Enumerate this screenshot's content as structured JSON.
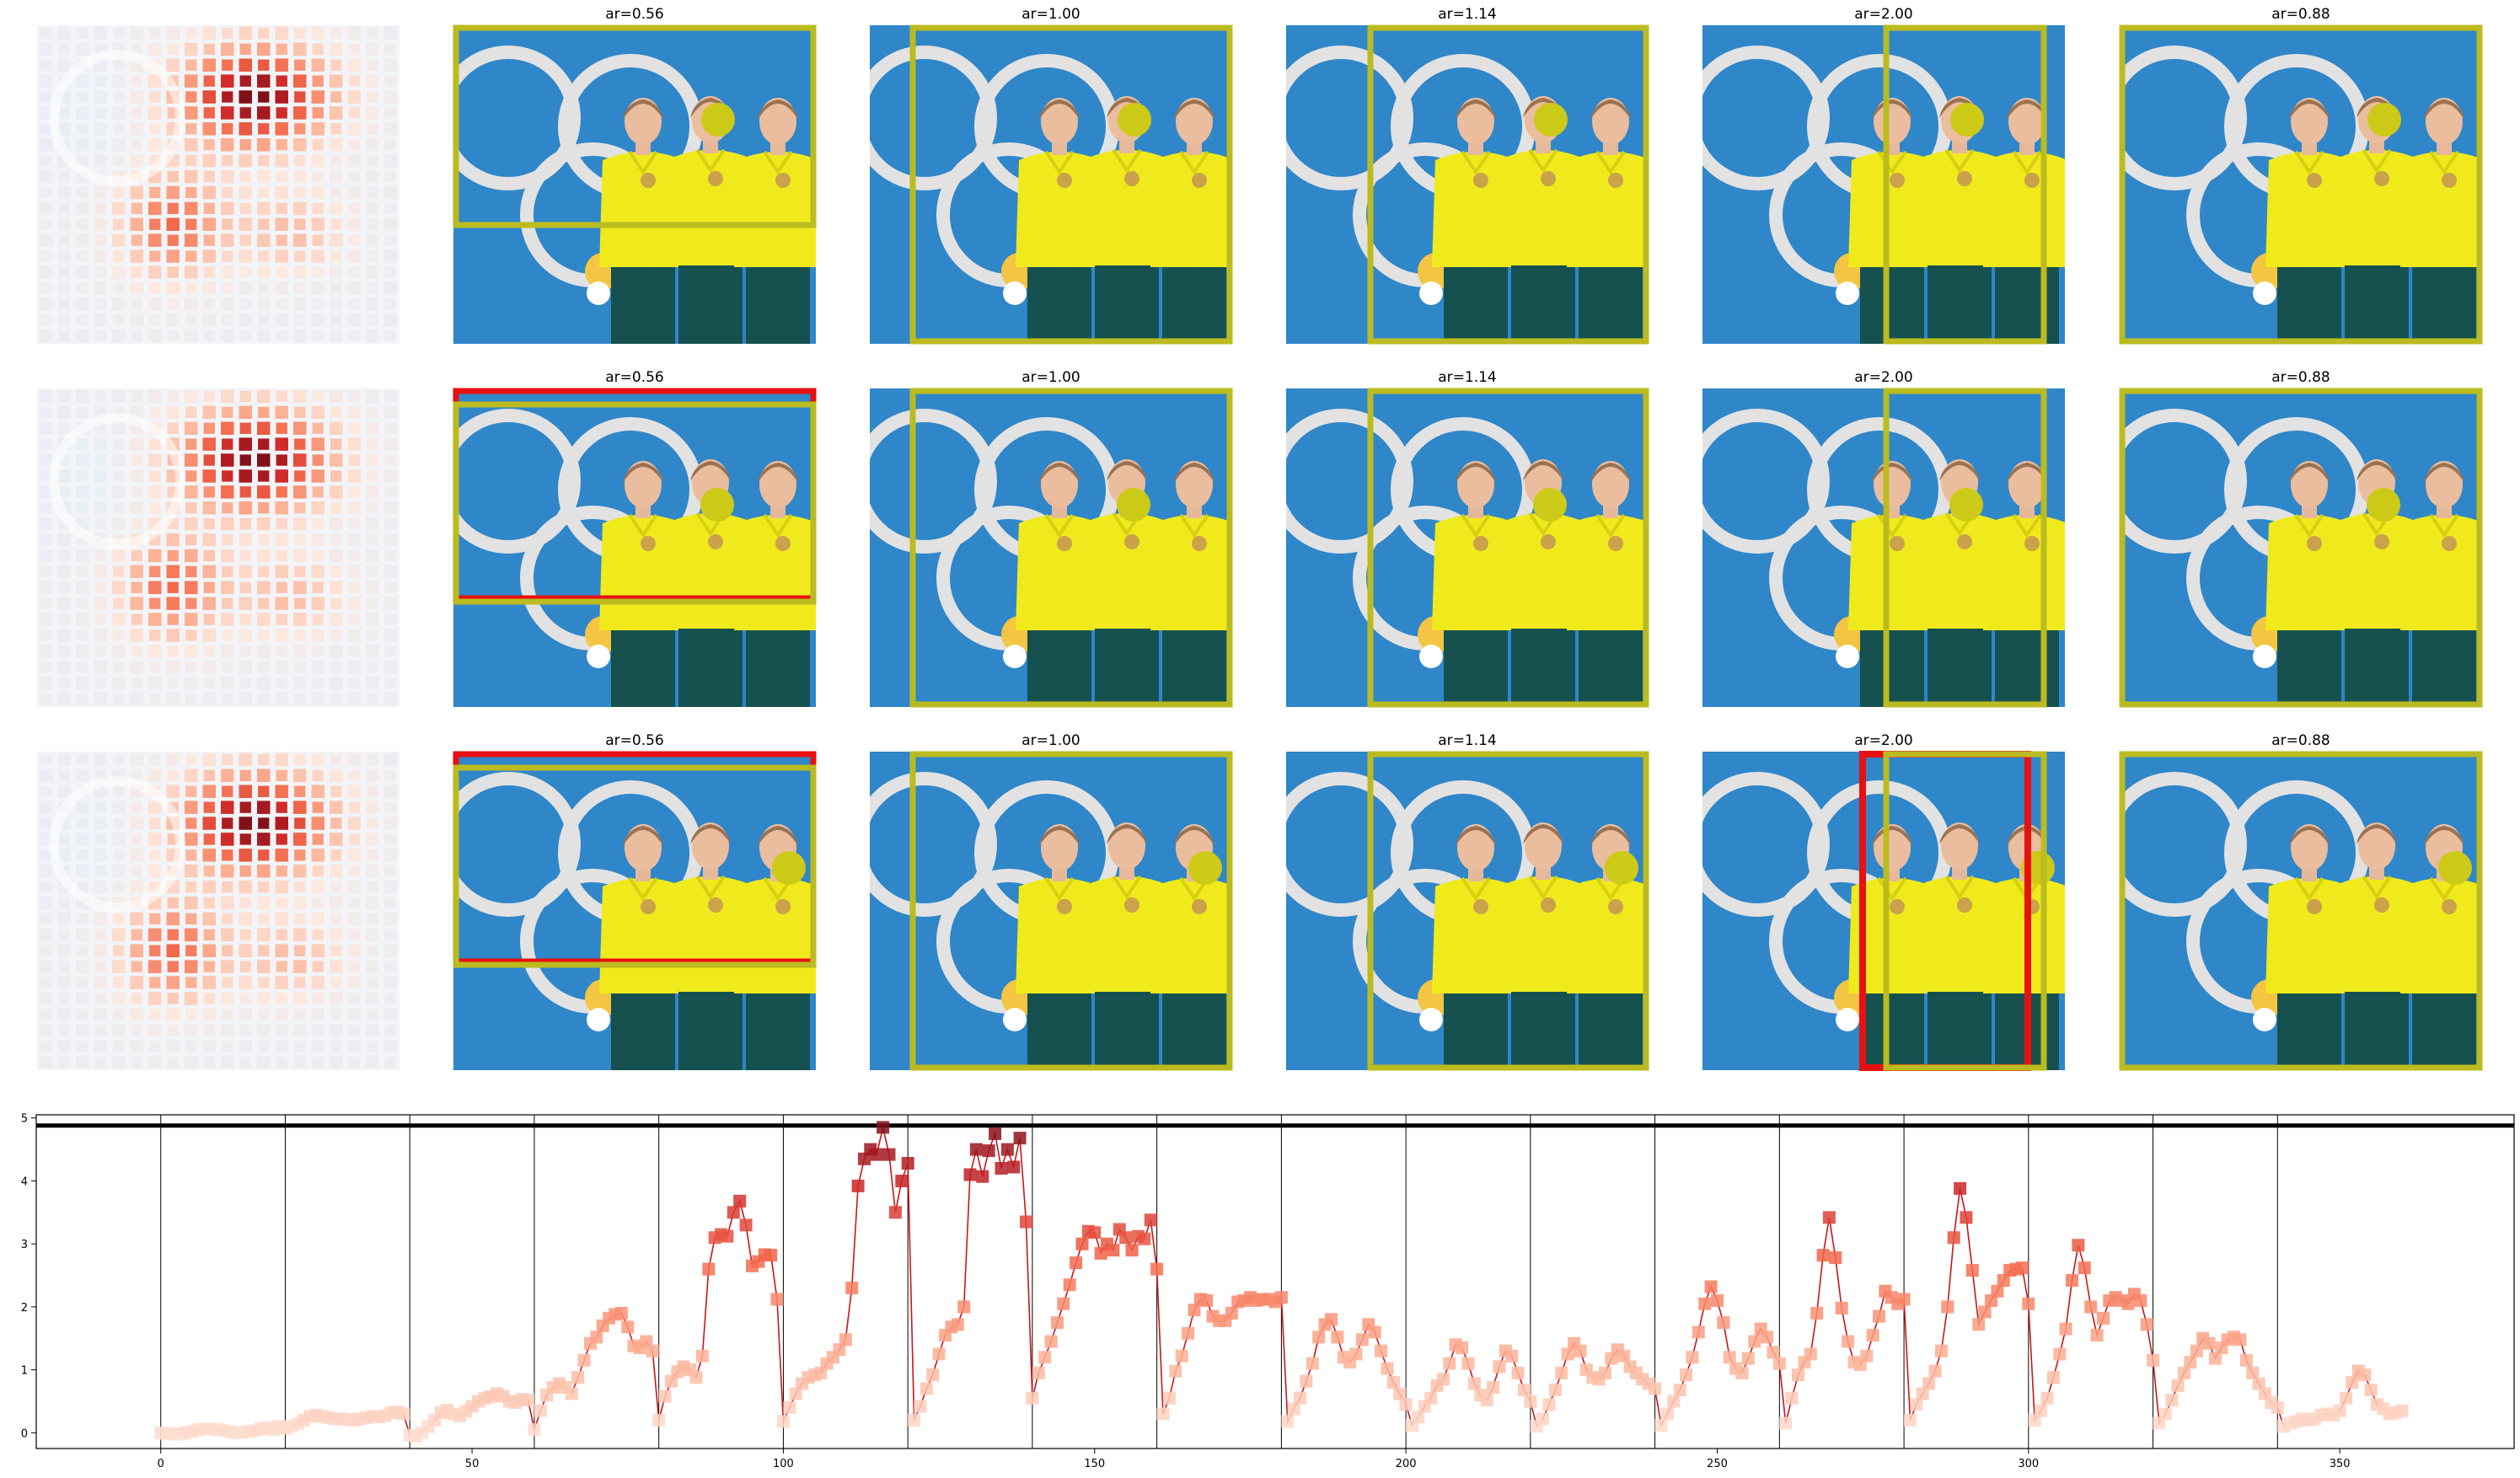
{
  "grid": {
    "rows": 3,
    "panel_titles": [
      "ar=0.56",
      "ar=1.00",
      "ar=1.14",
      "ar=2.00",
      "ar=0.88"
    ],
    "colors": {
      "photo_background": "#2f86c9",
      "olympic_rings": "#e2e2e2",
      "jacket": "#f0ea1c",
      "pants": "#17514f",
      "crop_box": "#bbbb1f",
      "original_box": "#e81010",
      "focus_dot": "#cdc917"
    },
    "red_boxes": [
      [
        false,
        false,
        false,
        false,
        false
      ],
      [
        true,
        false,
        false,
        false,
        false
      ],
      [
        true,
        false,
        false,
        true,
        false
      ]
    ]
  },
  "heatmap": {
    "description_colormap": "Reds",
    "peak_regions": [
      "upper-right",
      "lower-center"
    ]
  },
  "chart_data": {
    "type": "line",
    "title": "",
    "xlabel": "",
    "ylabel": "",
    "xlim": [
      -20,
      378
    ],
    "ylim": [
      -0.25,
      5.05
    ],
    "xticks": [
      0,
      50,
      100,
      150,
      200,
      250,
      300,
      350
    ],
    "yticks": [
      0,
      1,
      2,
      3,
      4,
      5
    ],
    "grid": false,
    "legend": "none",
    "reference_line_y": 4.88,
    "segment_boundaries": [
      0,
      20,
      40,
      60,
      80,
      100,
      120,
      140,
      160,
      180,
      200,
      220,
      240,
      260,
      280,
      300,
      320,
      340
    ],
    "series": [
      {
        "values": [
          0.0,
          -0.02,
          -0.02,
          -0.02,
          0.0,
          0.02,
          0.05,
          0.06,
          0.06,
          0.05,
          0.04,
          0.02,
          0.0,
          0.0,
          0.02,
          0.03,
          0.06,
          0.08,
          0.05,
          0.1,
          0.07,
          0.1,
          0.14,
          0.2,
          0.26,
          0.28,
          0.26,
          0.24,
          0.22,
          0.22,
          0.21,
          0.2,
          0.22,
          0.24,
          0.26,
          0.25,
          0.27,
          0.32,
          0.33,
          0.3,
          -0.04,
          -0.05,
          0.0,
          0.1,
          0.2,
          0.32,
          0.36,
          0.3,
          0.27,
          0.34,
          0.42,
          0.5,
          0.55,
          0.57,
          0.62,
          0.58,
          0.5,
          0.48,
          0.53,
          0.52,
          0.05,
          0.35,
          0.6,
          0.72,
          0.78,
          0.72,
          0.62,
          0.88,
          1.15,
          1.42,
          1.52,
          1.7,
          1.82,
          1.88,
          1.9,
          1.68,
          1.38,
          1.35,
          1.45,
          1.3,
          0.2,
          0.58,
          0.82,
          0.97,
          1.05,
          1.0,
          0.88,
          1.22,
          2.6,
          3.1,
          3.15,
          3.12,
          3.5,
          3.68,
          3.3,
          2.65,
          2.72,
          2.83,
          2.82,
          2.12,
          0.18,
          0.4,
          0.62,
          0.78,
          0.88,
          0.92,
          0.95,
          1.1,
          1.2,
          1.32,
          1.48,
          2.3,
          3.92,
          4.35,
          4.5,
          4.42,
          4.85,
          4.42,
          3.5,
          4.0,
          4.28,
          0.2,
          0.42,
          0.7,
          0.92,
          1.25,
          1.55,
          1.68,
          1.72,
          2.0,
          4.1,
          4.5,
          4.07,
          4.48,
          4.75,
          4.2,
          4.5,
          4.22,
          4.68,
          3.35,
          0.55,
          0.95,
          1.2,
          1.45,
          1.75,
          2.05,
          2.35,
          2.7,
          3.0,
          3.2,
          3.18,
          2.85,
          3.0,
          2.9,
          3.23,
          3.1,
          2.9,
          3.12,
          3.08,
          3.38,
          2.6,
          0.3,
          0.55,
          0.98,
          1.22,
          1.58,
          1.95,
          2.12,
          2.1,
          1.85,
          1.78,
          1.78,
          1.9,
          2.08,
          2.1,
          2.15,
          2.1,
          2.12,
          2.12,
          2.08,
          2.15,
          0.18,
          0.38,
          0.55,
          0.82,
          1.1,
          1.52,
          1.72,
          1.8,
          1.52,
          1.2,
          1.12,
          1.25,
          1.48,
          1.72,
          1.6,
          1.3,
          1.02,
          0.8,
          0.62,
          0.45,
          0.12,
          0.25,
          0.42,
          0.55,
          0.75,
          0.85,
          1.1,
          1.4,
          1.35,
          1.1,
          0.78,
          0.6,
          0.52,
          0.72,
          1.05,
          1.3,
          1.22,
          0.95,
          0.68,
          0.5,
          0.1,
          0.22,
          0.45,
          0.68,
          0.95,
          1.25,
          1.42,
          1.3,
          1.0,
          0.88,
          0.85,
          0.95,
          1.18,
          1.32,
          1.22,
          1.05,
          0.95,
          0.85,
          0.78,
          0.7,
          0.12,
          0.3,
          0.5,
          0.68,
          0.92,
          1.2,
          1.6,
          2.05,
          2.32,
          2.1,
          1.75,
          1.2,
          1.02,
          0.95,
          1.18,
          1.45,
          1.65,
          1.52,
          1.28,
          1.1,
          0.15,
          0.55,
          0.92,
          1.12,
          1.25,
          1.9,
          2.82,
          3.42,
          2.78,
          1.98,
          1.45,
          1.12,
          1.08,
          1.22,
          1.55,
          1.85,
          2.25,
          2.15,
          2.05,
          2.12,
          0.2,
          0.45,
          0.62,
          0.78,
          0.98,
          1.3,
          2.0,
          3.1,
          3.88,
          3.42,
          2.58,
          1.72,
          1.92,
          2.1,
          2.25,
          2.42,
          2.58,
          2.6,
          2.62,
          2.05,
          0.2,
          0.35,
          0.55,
          0.88,
          1.25,
          1.65,
          2.42,
          2.98,
          2.62,
          2.0,
          1.55,
          1.82,
          2.1,
          2.15,
          2.1,
          2.05,
          2.2,
          2.1,
          1.72,
          1.15,
          0.15,
          0.3,
          0.52,
          0.75,
          0.95,
          1.12,
          1.3,
          1.5,
          1.42,
          1.18,
          1.35,
          1.48,
          1.52,
          1.48,
          1.15,
          0.95,
          0.78,
          0.62,
          0.48,
          0.4,
          0.1,
          0.15,
          0.18,
          0.22,
          0.2,
          0.22,
          0.28,
          0.3,
          0.28,
          0.35,
          0.55,
          0.8,
          0.98,
          0.92,
          0.68,
          0.45,
          0.38,
          0.3,
          0.32,
          0.35
        ]
      }
    ]
  }
}
